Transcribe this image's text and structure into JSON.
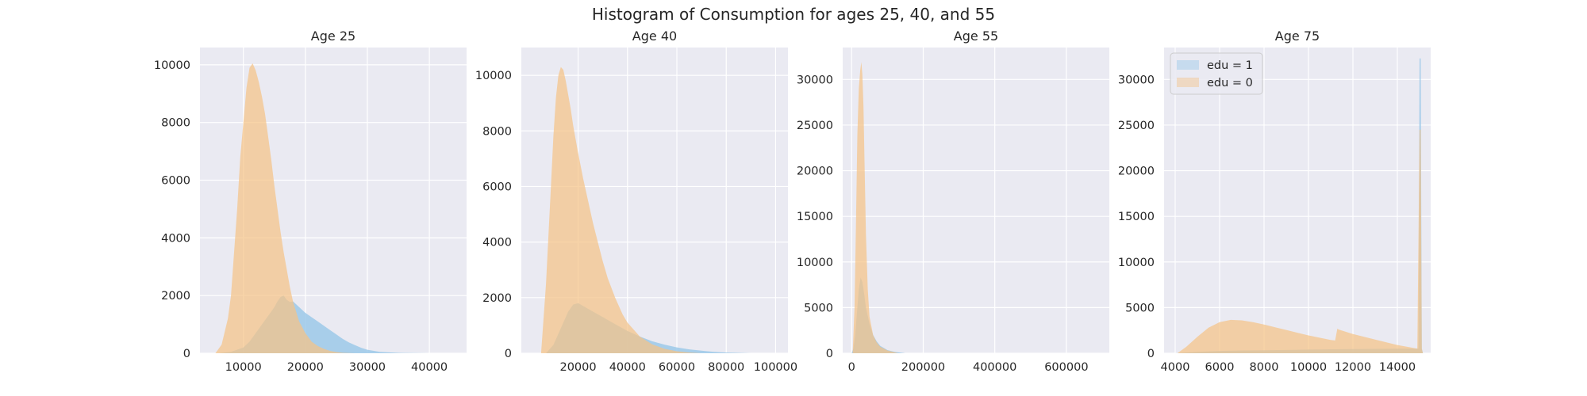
{
  "figure": {
    "suptitle": "Histogram of Consumption for ages 25, 40, and 55",
    "colors": {
      "panel_bg": "#EAEAF2",
      "grid": "#FFFFFF",
      "edu1": "#9CC9E9",
      "edu0": "#F5C487",
      "overlap": "#C2C190"
    }
  },
  "chart_data": [
    {
      "type": "area",
      "title": "Age 25",
      "xlim": [
        3000,
        46000
      ],
      "ylim": [
        0,
        10600
      ],
      "xticks": [
        10000,
        20000,
        30000,
        40000
      ],
      "yticks": [
        0,
        2000,
        4000,
        6000,
        8000,
        10000
      ],
      "legend": null,
      "series": [
        {
          "name": "edu = 1",
          "color": "#9CC9E9",
          "x": [
            6000,
            8000,
            10000,
            11000,
            12000,
            13000,
            14000,
            15000,
            15500,
            16000,
            16500,
            17000,
            17500,
            18000,
            18500,
            19000,
            19500,
            20000,
            21000,
            22000,
            23000,
            24000,
            25000,
            26000,
            27000,
            28000,
            29000,
            30000,
            32000,
            35000,
            40000
          ],
          "y": [
            0,
            50,
            200,
            400,
            700,
            1000,
            1300,
            1600,
            1800,
            1950,
            2000,
            1850,
            1780,
            1800,
            1700,
            1600,
            1500,
            1400,
            1250,
            1100,
            950,
            800,
            650,
            500,
            380,
            280,
            190,
            120,
            50,
            15,
            0
          ]
        },
        {
          "name": "edu = 0",
          "color": "#F5C487",
          "x": [
            5500,
            6500,
            7500,
            8000,
            8500,
            9000,
            9500,
            10000,
            10500,
            11000,
            11500,
            12000,
            12500,
            13000,
            13500,
            14000,
            14500,
            15000,
            15500,
            16000,
            16500,
            17000,
            17500,
            18000,
            19000,
            20000,
            21000,
            22000,
            23000,
            24000,
            25000,
            26000,
            28000
          ],
          "y": [
            0,
            300,
            1200,
            2000,
            3500,
            5000,
            6800,
            8000,
            9200,
            9900,
            10050,
            9800,
            9400,
            8900,
            8300,
            7500,
            6700,
            5800,
            5000,
            4200,
            3500,
            2900,
            2300,
            1800,
            1100,
            700,
            400,
            250,
            150,
            80,
            40,
            15,
            0
          ]
        }
      ]
    },
    {
      "type": "area",
      "title": "Age 40",
      "xlim": [
        -3000,
        105000
      ],
      "ylim": [
        0,
        11000
      ],
      "xticks": [
        20000,
        40000,
        60000,
        80000,
        100000
      ],
      "yticks": [
        0,
        2000,
        4000,
        6000,
        8000,
        10000
      ],
      "legend": null,
      "series": [
        {
          "name": "edu = 1",
          "color": "#9CC9E9",
          "x": [
            7000,
            10000,
            12000,
            14000,
            16000,
            18000,
            20000,
            22000,
            24000,
            26000,
            28000,
            30000,
            35000,
            40000,
            45000,
            50000,
            55000,
            60000,
            65000,
            70000,
            75000,
            80000,
            90000
          ],
          "y": [
            0,
            300,
            700,
            1100,
            1500,
            1750,
            1800,
            1700,
            1600,
            1500,
            1400,
            1300,
            1050,
            800,
            600,
            430,
            310,
            210,
            140,
            90,
            50,
            25,
            0
          ]
        },
        {
          "name": "edu = 0",
          "color": "#F5C487",
          "x": [
            5000,
            7000,
            9000,
            10000,
            11000,
            12000,
            13000,
            14000,
            15000,
            16000,
            17000,
            18000,
            19000,
            20000,
            22000,
            24000,
            26000,
            28000,
            30000,
            32000,
            35000,
            38000,
            40000,
            45000,
            50000,
            55000,
            60000,
            65000,
            70000
          ],
          "y": [
            0,
            2500,
            6000,
            7800,
            9200,
            10000,
            10300,
            10200,
            9800,
            9300,
            8800,
            8200,
            7700,
            7200,
            6300,
            5500,
            4700,
            4000,
            3300,
            2700,
            2000,
            1400,
            1100,
            600,
            320,
            160,
            70,
            25,
            0
          ]
        }
      ]
    },
    {
      "type": "area",
      "title": "Age 55",
      "xlim": [
        -25000,
        720000
      ],
      "ylim": [
        0,
        33500
      ],
      "xticks": [
        0,
        200000,
        400000,
        600000
      ],
      "yticks": [
        0,
        5000,
        10000,
        15000,
        20000,
        25000,
        30000
      ],
      "legend": null,
      "series": [
        {
          "name": "edu = 1",
          "color": "#9CC9E9",
          "x": [
            0,
            5000,
            10000,
            15000,
            20000,
            25000,
            30000,
            35000,
            40000,
            50000,
            60000,
            70000,
            80000,
            100000,
            120000,
            150000
          ],
          "y": [
            0,
            500,
            2000,
            4500,
            7000,
            8300,
            7800,
            6500,
            5000,
            3200,
            2000,
            1300,
            800,
            350,
            150,
            0
          ]
        },
        {
          "name": "edu = 0",
          "color": "#F5C487",
          "x": [
            3000,
            8000,
            12000,
            16000,
            20000,
            24000,
            27000,
            30000,
            33000,
            36000,
            40000,
            45000,
            50000,
            60000,
            70000,
            80000,
            100000,
            130000
          ],
          "y": [
            0,
            5000,
            14000,
            24000,
            29000,
            31000,
            31900,
            30500,
            27000,
            21000,
            13000,
            7000,
            4000,
            2000,
            1200,
            700,
            300,
            0
          ]
        }
      ]
    },
    {
      "type": "area",
      "title": "Age 75",
      "xlim": [
        3500,
        15500
      ],
      "ylim": [
        0,
        33500
      ],
      "xticks": [
        4000,
        6000,
        8000,
        10000,
        12000,
        14000
      ],
      "yticks": [
        0,
        5000,
        10000,
        15000,
        20000,
        25000,
        30000
      ],
      "legend": "top-left",
      "series": [
        {
          "name": "edu = 1",
          "color": "#9CC9E9",
          "x": [
            4000,
            5000,
            6000,
            7000,
            8000,
            9000,
            10000,
            11000,
            12000,
            13000,
            14000,
            14950,
            15000,
            15050,
            15100,
            15150
          ],
          "y": [
            0,
            150,
            250,
            300,
            330,
            360,
            400,
            430,
            460,
            480,
            500,
            500,
            32300,
            32300,
            500,
            0
          ]
        },
        {
          "name": "edu = 0",
          "color": "#F5C487",
          "x": [
            4100,
            4500,
            5000,
            5500,
            6000,
            6500,
            7000,
            7500,
            8000,
            8500,
            9000,
            9500,
            10000,
            10500,
            11000,
            11200,
            11300,
            11350,
            12000,
            13000,
            14000,
            14900,
            15000,
            15050,
            15100,
            15150
          ],
          "y": [
            0,
            700,
            1800,
            2800,
            3400,
            3650,
            3600,
            3400,
            3150,
            2850,
            2550,
            2250,
            1950,
            1700,
            1450,
            1400,
            2700,
            2600,
            2100,
            1500,
            900,
            500,
            24500,
            24500,
            500,
            0
          ]
        }
      ]
    }
  ],
  "legend": {
    "items": [
      {
        "label": "edu = 1",
        "color": "#9CC9E9"
      },
      {
        "label": "edu = 0",
        "color": "#F5C487"
      }
    ]
  }
}
